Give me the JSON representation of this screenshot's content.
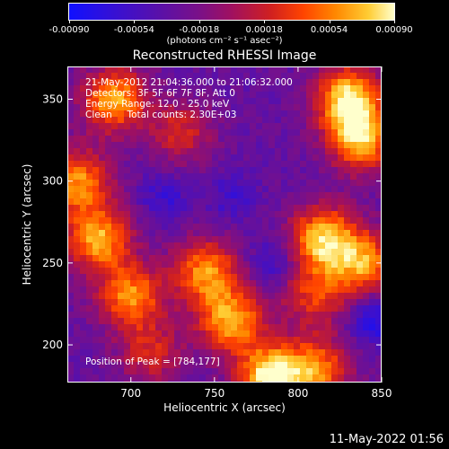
{
  "colorbar": {
    "ticks": [
      "-0.00090",
      "-0.00054",
      "-0.00018",
      "0.00018",
      "0.00054",
      "0.00090"
    ],
    "units": "(photons cm⁻² s⁻¹ asec⁻²)"
  },
  "chart_data": {
    "type": "heatmap",
    "title": "Reconstructed RHESSI Image",
    "xlabel": "Heliocentric X (arcsec)",
    "ylabel": "Heliocentric Y (arcsec)",
    "xlim": [
      662,
      850
    ],
    "ylim": [
      177,
      370
    ],
    "x_ticks": [
      700,
      750,
      800,
      850
    ],
    "y_ticks": [
      200,
      250,
      300,
      350
    ],
    "value_range": [
      -0.0009,
      0.0009
    ],
    "annotations": {
      "line1": "21-May-2012 21:04:36.000 to 21:06:32.000",
      "line2": "Detectors: 3F 5F 6F 7F 8F, Att 0",
      "line3": "Energy Range: 12.0 - 25.0 keV",
      "line4": "Clean     Total counts: 2.30E+03",
      "peak": "Position of Peak = [784,177]"
    },
    "bright_regions": [
      {
        "x": 690,
        "y": 350,
        "level": 0.85
      },
      {
        "x": 668,
        "y": 300,
        "level": 0.8
      },
      {
        "x": 680,
        "y": 265,
        "level": 0.85
      },
      {
        "x": 700,
        "y": 230,
        "level": 0.8
      },
      {
        "x": 730,
        "y": 330,
        "level": 0.6
      },
      {
        "x": 745,
        "y": 245,
        "level": 0.8
      },
      {
        "x": 760,
        "y": 215,
        "level": 0.85
      },
      {
        "x": 784,
        "y": 180,
        "level": 1.0
      },
      {
        "x": 812,
        "y": 185,
        "level": 0.75
      },
      {
        "x": 830,
        "y": 350,
        "level": 0.95
      },
      {
        "x": 838,
        "y": 325,
        "level": 0.85
      },
      {
        "x": 815,
        "y": 265,
        "level": 0.9
      },
      {
        "x": 840,
        "y": 250,
        "level": 0.8
      },
      {
        "x": 810,
        "y": 230,
        "level": 0.65
      },
      {
        "x": 712,
        "y": 195,
        "level": 0.6
      }
    ],
    "dark_regions": [
      {
        "x": 785,
        "y": 250,
        "level": 0.15
      },
      {
        "x": 845,
        "y": 215,
        "level": 0.05
      },
      {
        "x": 720,
        "y": 290,
        "level": 0.15
      },
      {
        "x": 760,
        "y": 290,
        "level": 0.18
      }
    ]
  },
  "footer": {
    "timestamp": "11-May-2022 01:56"
  }
}
